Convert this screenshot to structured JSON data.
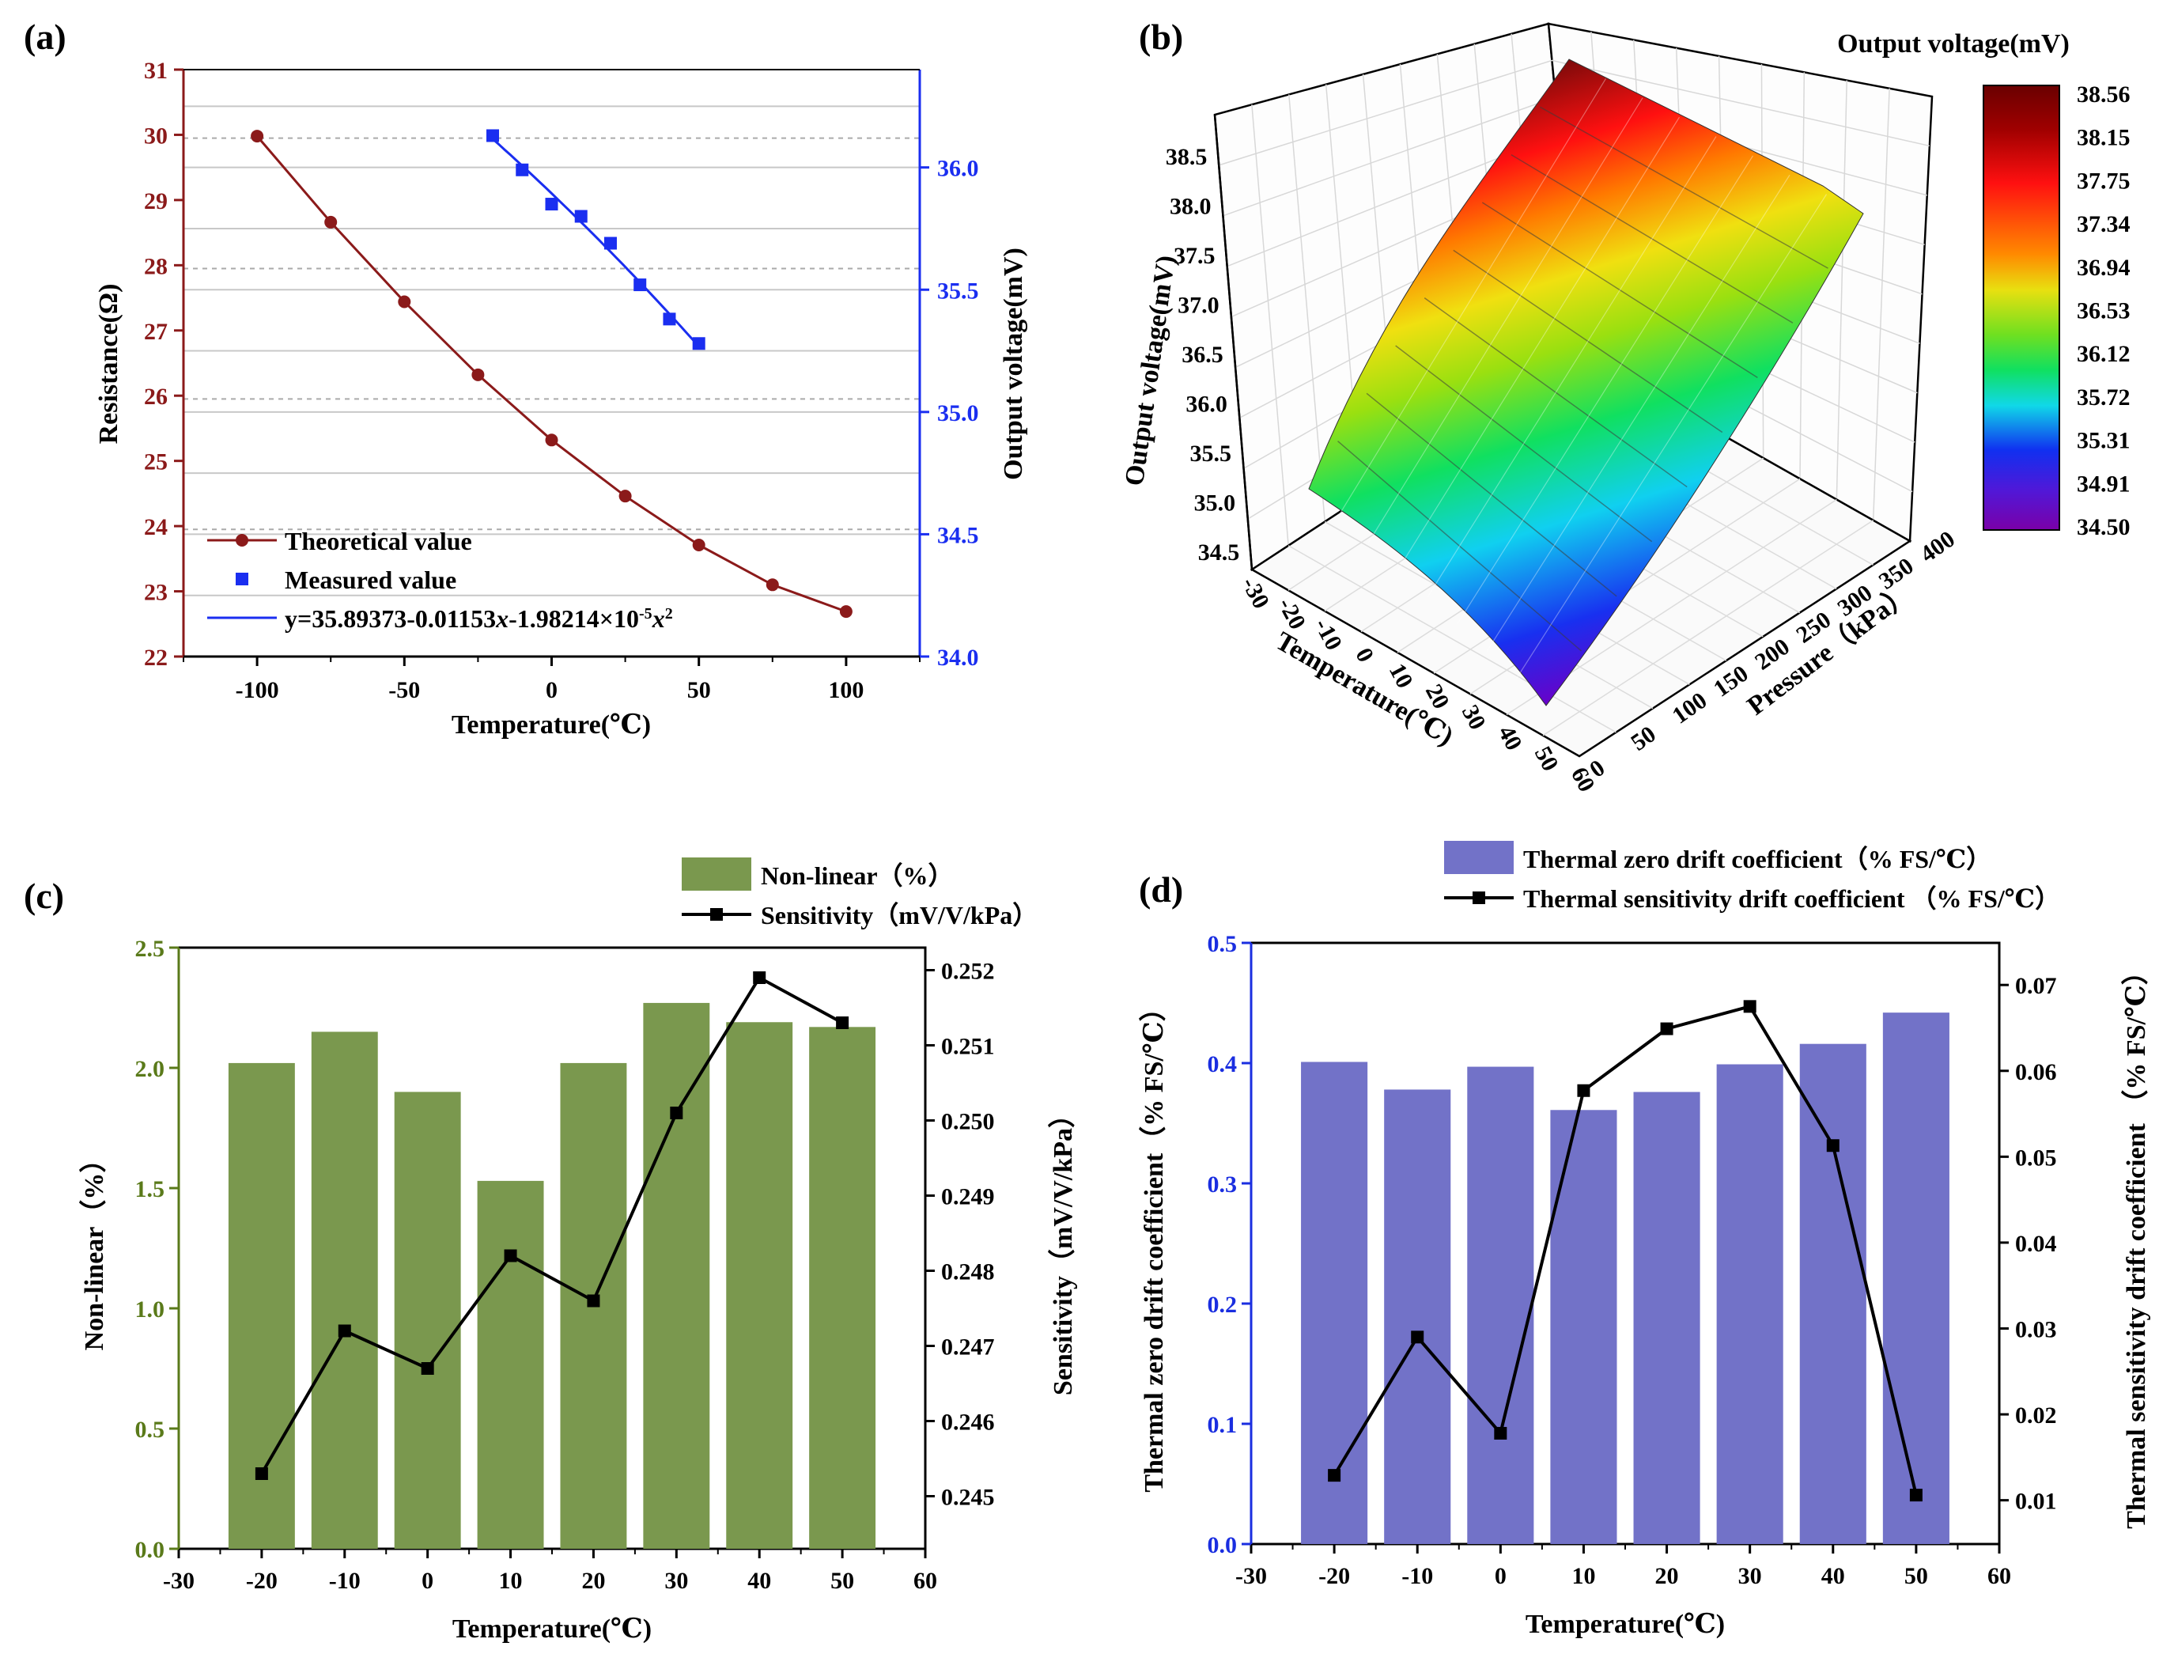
{
  "panels": {
    "a": {
      "label": "(a)"
    },
    "b": {
      "label": "(b)"
    },
    "c": {
      "label": "(c)"
    },
    "d": {
      "label": "(d)"
    }
  },
  "colors": {
    "resistance": "#8b1a1a",
    "measured": "#1a2ef0",
    "nonlinear": "#7a984e",
    "sensitivity": "#000000",
    "zerodrift": "#7272c8",
    "left_axis_c": "#5a7a1a",
    "left_axis_d": "#1a2ee0"
  },
  "chart_data": [
    {
      "id": "a",
      "type": "line",
      "title": "",
      "xlabel": "Temperature(℃)",
      "ylabel": "Resistance(Ω)",
      "y2label": "Output voltage(mV)",
      "xlim": [
        -125,
        125
      ],
      "ylim": [
        22,
        31
      ],
      "y2lim": [
        34.0,
        36.4
      ],
      "xticks": [
        "-100",
        "-50",
        "0",
        "50",
        "100"
      ],
      "yticks": [
        "22",
        "23",
        "24",
        "25",
        "26",
        "27",
        "28",
        "29",
        "30",
        "31"
      ],
      "y2ticks": [
        "34.0",
        "34.5",
        "35.0",
        "35.5",
        "36.0"
      ],
      "series": [
        {
          "name": "Theoretical value",
          "axis": "left",
          "x": [
            -100,
            -75,
            -50,
            -25,
            0,
            25,
            50,
            75,
            100
          ],
          "values": [
            29.98,
            28.66,
            27.44,
            26.32,
            25.32,
            24.46,
            23.71,
            23.1,
            22.69
          ]
        },
        {
          "name": "Measured value",
          "axis": "right",
          "x": [
            -20,
            -10,
            0,
            10,
            20,
            30,
            40,
            50
          ],
          "values": [
            36.13,
            35.99,
            35.85,
            35.8,
            35.69,
            35.52,
            35.38,
            35.28
          ]
        },
        {
          "name": "y=35.89373-0.01153x-1.98214×10-5x2",
          "axis": "right",
          "fit": true
        }
      ],
      "legend": [
        "Theoretical value",
        "Measured value",
        "y=35.89373-0.01153",
        "x",
        "-1.98214×10",
        "-5",
        "x",
        "2"
      ]
    },
    {
      "id": "b",
      "type": "surface",
      "title": "Output voltage(mV)",
      "xlabel": "Temperature(℃)",
      "ylabel": "Pressure（kPa）",
      "zlabel": "Output voltage(mV)",
      "xticks": [
        "-30",
        "-20",
        "-10",
        "0",
        "10",
        "20",
        "30",
        "40",
        "50",
        "60"
      ],
      "yticks": [
        "0",
        "50",
        "100",
        "150",
        "200",
        "250",
        "300",
        "350",
        "400"
      ],
      "zticks": [
        "34.5",
        "35.0",
        "35.5",
        "36.0",
        "36.5",
        "37.0",
        "37.5",
        "38.0",
        "38.5"
      ],
      "zlim": [
        34.5,
        38.56
      ],
      "colorbar_ticks": [
        "38.56",
        "38.15",
        "37.75",
        "37.34",
        "36.94",
        "36.53",
        "36.12",
        "35.72",
        "35.31",
        "34.91",
        "34.50"
      ]
    },
    {
      "id": "c",
      "type": "bar",
      "xlabel": "Temperature(℃)",
      "ylabel": "Non-linear（%）",
      "y2label": "Sensitivity（mV/V/kPa）",
      "xlim": [
        -30,
        60
      ],
      "ylim": [
        0,
        2.5
      ],
      "y2lim": [
        0.2443,
        0.2523
      ],
      "xticks": [
        "-30",
        "-20",
        "-10",
        "0",
        "10",
        "20",
        "30",
        "40",
        "50",
        "60"
      ],
      "yticks": [
        "0.0",
        "0.5",
        "1.0",
        "1.5",
        "2.0",
        "2.5"
      ],
      "y2ticks": [
        "0.245",
        "0.246",
        "0.247",
        "0.248",
        "0.249",
        "0.250",
        "0.251",
        "0.252"
      ],
      "categories": [
        -20,
        -10,
        0,
        10,
        20,
        30,
        40,
        50
      ],
      "series": [
        {
          "name": "Non-linear（%）",
          "type": "bar",
          "values": [
            2.02,
            2.15,
            1.9,
            1.53,
            2.02,
            2.27,
            2.19,
            2.17
          ]
        },
        {
          "name": "Sensitivity（mV/V/kPa）",
          "type": "line",
          "values": [
            0.2453,
            0.2472,
            0.2467,
            0.2482,
            0.2476,
            0.2501,
            0.2519,
            0.2513
          ]
        }
      ]
    },
    {
      "id": "d",
      "type": "bar",
      "xlabel": "Temperature(℃)",
      "ylabel": "Thermal zero drift coefficient（% FS/℃）",
      "y2label": "Thermal sensitivity drift coefficient （% FS/℃）",
      "xlim": [
        -30,
        60
      ],
      "ylim": [
        0,
        0.5
      ],
      "y2lim": [
        0.0049,
        0.0749
      ],
      "xticks": [
        "-30",
        "-20",
        "-10",
        "0",
        "10",
        "20",
        "30",
        "40",
        "50",
        "60"
      ],
      "yticks": [
        "0.0",
        "0.1",
        "0.2",
        "0.3",
        "0.4",
        "0.5"
      ],
      "y2ticks": [
        "0.01",
        "0.02",
        "0.03",
        "0.04",
        "0.05",
        "0.06",
        "0.07"
      ],
      "categories": [
        -20,
        -10,
        0,
        10,
        20,
        30,
        40,
        50
      ],
      "series": [
        {
          "name": "Thermal zero drift coefficient（% FS/℃）",
          "type": "bar",
          "values": [
            0.401,
            0.378,
            0.397,
            0.361,
            0.376,
            0.399,
            0.416,
            0.442
          ]
        },
        {
          "name": "Thermal sensitivity drift coefficient （% FS/℃）",
          "type": "line",
          "values": [
            0.0129,
            0.029,
            0.0178,
            0.0577,
            0.0649,
            0.0675,
            0.0513,
            0.0106
          ]
        }
      ]
    }
  ]
}
